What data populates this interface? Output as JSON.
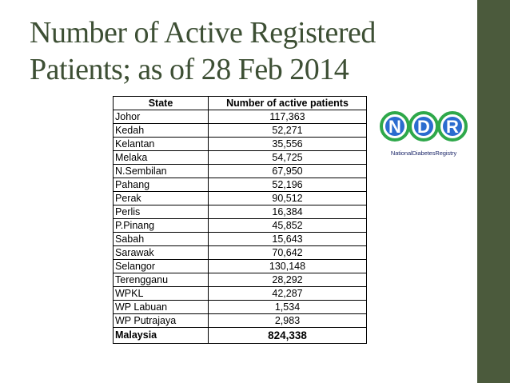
{
  "slide": {
    "title_line1": "Number of Active Registered",
    "title_line2": "Patients; as of 28 Feb 2014"
  },
  "colors": {
    "title": "#3d4f34",
    "side_bar": "#4b5a3c",
    "logo_blue": "#1f3a9b",
    "logo_green": "#2ea84a"
  },
  "table": {
    "headers": [
      "State",
      "Number of active patients"
    ],
    "rows": [
      [
        "Johor",
        "117,363"
      ],
      [
        "Kedah",
        "52,271"
      ],
      [
        "Kelantan",
        "35,556"
      ],
      [
        "Melaka",
        "54,725"
      ],
      [
        "N.Sembilan",
        "67,950"
      ],
      [
        "Pahang",
        "52,196"
      ],
      [
        "Perak",
        "90,512"
      ],
      [
        "Perlis",
        "16,384"
      ],
      [
        "P.Pinang",
        "45,852"
      ],
      [
        "Sabah",
        "15,643"
      ],
      [
        "Sarawak",
        "70,642"
      ],
      [
        "Selangor",
        "130,148"
      ],
      [
        "Terengganu",
        "28,292"
      ],
      [
        "WPKL",
        "42,287"
      ],
      [
        "WP Labuan",
        "1,534"
      ],
      [
        "WP Putrajaya",
        "2,983"
      ]
    ],
    "total": [
      "Malaysia",
      "824,338"
    ]
  },
  "logo": {
    "letters": [
      "N",
      "D",
      "R"
    ],
    "caption": "NationalDiabetesRegistry"
  }
}
